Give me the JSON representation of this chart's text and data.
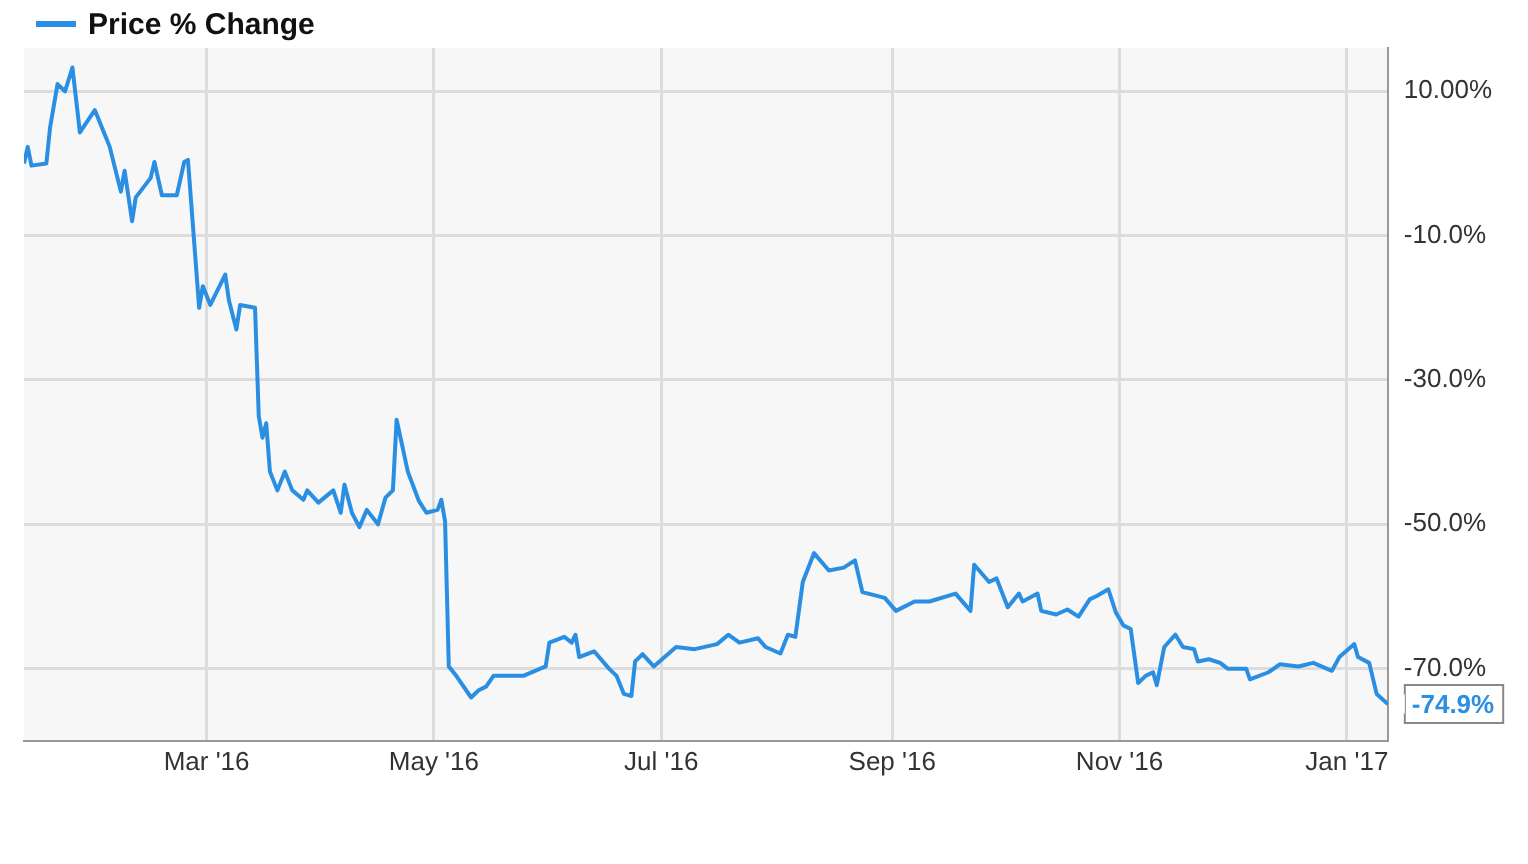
{
  "chart_data": {
    "type": "line",
    "x": [
      "2016-01-12",
      "2016-01-13",
      "2016-01-14",
      "2016-01-18",
      "2016-01-19",
      "2016-01-21",
      "2016-01-23",
      "2016-01-25",
      "2016-01-27",
      "2016-01-31",
      "2016-02-03",
      "2016-02-04",
      "2016-02-07",
      "2016-02-08",
      "2016-02-10",
      "2016-02-11",
      "2016-02-15",
      "2016-02-16",
      "2016-02-18",
      "2016-02-22",
      "2016-02-24",
      "2016-02-25",
      "2016-02-28",
      "2016-02-29",
      "2016-03-02",
      "2016-03-06",
      "2016-03-07",
      "2016-03-09",
      "2016-03-10",
      "2016-03-14",
      "2016-03-15",
      "2016-03-16",
      "2016-03-17",
      "2016-03-18",
      "2016-03-20",
      "2016-03-22",
      "2016-03-24",
      "2016-03-27",
      "2016-03-28",
      "2016-03-31",
      "2016-04-04",
      "2016-04-06",
      "2016-04-07",
      "2016-04-09",
      "2016-04-11",
      "2016-04-13",
      "2016-04-16",
      "2016-04-18",
      "2016-04-20",
      "2016-04-21",
      "2016-04-24",
      "2016-04-27",
      "2016-04-29",
      "2016-05-02",
      "2016-05-03",
      "2016-05-04",
      "2016-05-05",
      "2016-05-07",
      "2016-05-11",
      "2016-05-13",
      "2016-05-15",
      "2016-05-17",
      "2016-05-25",
      "2016-05-31",
      "2016-06-01",
      "2016-06-05",
      "2016-06-07",
      "2016-06-08",
      "2016-06-09",
      "2016-06-13",
      "2016-06-17",
      "2016-06-19",
      "2016-06-21",
      "2016-06-23",
      "2016-06-24",
      "2016-06-26",
      "2016-06-29",
      "2016-07-05",
      "2016-07-10",
      "2016-07-16",
      "2016-07-19",
      "2016-07-22",
      "2016-07-27",
      "2016-07-29",
      "2016-08-02",
      "2016-08-04",
      "2016-08-06",
      "2016-08-08",
      "2016-08-11",
      "2016-08-15",
      "2016-08-19",
      "2016-08-22",
      "2016-08-24",
      "2016-08-30",
      "2016-09-02",
      "2016-09-07",
      "2016-09-11",
      "2016-09-18",
      "2016-09-22",
      "2016-09-23",
      "2016-09-27",
      "2016-09-29",
      "2016-10-02",
      "2016-10-05",
      "2016-10-06",
      "2016-10-10",
      "2016-10-11",
      "2016-10-15",
      "2016-10-18",
      "2016-10-21",
      "2016-10-24",
      "2016-10-26",
      "2016-10-29",
      "2016-10-31",
      "2016-11-02",
      "2016-11-04",
      "2016-11-06",
      "2016-11-08",
      "2016-11-10",
      "2016-11-11",
      "2016-11-13",
      "2016-11-16",
      "2016-11-18",
      "2016-11-21",
      "2016-11-22",
      "2016-11-25",
      "2016-11-28",
      "2016-11-30",
      "2016-12-05",
      "2016-12-06",
      "2016-12-11",
      "2016-12-14",
      "2016-12-19",
      "2016-12-23",
      "2016-12-28",
      "2016-12-30",
      "2017-01-03",
      "2017-01-04",
      "2017-01-07",
      "2017-01-09",
      "2017-01-12"
    ],
    "series": [
      {
        "name": "Price % Change",
        "color": "#2a8fe3",
        "values": [
          0,
          2.3,
          -0.3,
          0,
          5,
          11,
          10,
          13.3,
          4.3,
          7.4,
          3.6,
          2.3,
          -3.9,
          -1,
          -8,
          -4.7,
          -2,
          0.2,
          -4.4,
          -4.4,
          0.2,
          0.5,
          -20,
          -17,
          -19.6,
          -15.4,
          -19,
          -23,
          -19.6,
          -20,
          -35,
          -38,
          -36,
          -42.7,
          -45.3,
          -42.7,
          -45.3,
          -46.6,
          -45.3,
          -47,
          -45.3,
          -48.4,
          -44.5,
          -48.4,
          -50.4,
          -48,
          -50,
          -46.3,
          -45.3,
          -35.5,
          -42.7,
          -46.8,
          -48.4,
          -48,
          -46.6,
          -49.6,
          -69.7,
          -71,
          -74,
          -73,
          -72.5,
          -71,
          -71,
          -69.7,
          -66.4,
          -65.6,
          -66.4,
          -65.3,
          -68.4,
          -67.6,
          -70,
          -71,
          -73.5,
          -73.8,
          -69,
          -68,
          -69.7,
          -67,
          -67.3,
          -66.6,
          -65.3,
          -66.4,
          -65.8,
          -67,
          -67.9,
          -65.3,
          -65.6,
          -58,
          -54,
          -56.4,
          -56,
          -55,
          -59.4,
          -60.2,
          -62,
          -60.7,
          -60.7,
          -59.6,
          -62,
          -55.6,
          -58,
          -57.5,
          -61.5,
          -59.6,
          -60.7,
          -59.6,
          -62,
          -62.5,
          -61.8,
          -62.8,
          -60.4,
          -59.9,
          -59,
          -62.2,
          -64,
          -64.5,
          -72,
          -71,
          -70.5,
          -72.3,
          -67,
          -65.3,
          -67,
          -67.3,
          -69,
          -68.7,
          -69.2,
          -70,
          -70,
          -71.5,
          -70.5,
          -69.4,
          -69.7,
          -69.2,
          -70.3,
          -68.4,
          -66.6,
          -68.4,
          -69.2,
          -73.5,
          -74.9
        ]
      }
    ],
    "xlim": [
      "2016-01-12",
      "2017-01-12"
    ],
    "xticks": [
      {
        "value": "2016-03-01",
        "label": "Mar '16"
      },
      {
        "value": "2016-05-01",
        "label": "May '16"
      },
      {
        "value": "2016-07-01",
        "label": "Jul '16"
      },
      {
        "value": "2016-09-01",
        "label": "Sep '16"
      },
      {
        "value": "2016-11-01",
        "label": "Nov '16"
      },
      {
        "value": "2017-01-01",
        "label": "Jan '17"
      }
    ],
    "ylim": [
      -80,
      16
    ],
    "yticks": [
      {
        "value": 10,
        "label": "10.00%"
      },
      {
        "value": -10,
        "label": "-10.0%"
      },
      {
        "value": -30,
        "label": "-30.0%"
      },
      {
        "value": -50,
        "label": "-50.0%"
      },
      {
        "value": -70,
        "label": "-70.0%"
      }
    ],
    "grid": true,
    "legend": "top left",
    "annotations": [
      {
        "text": "-74.9%",
        "x": "2017-01-12",
        "y": -74.9
      }
    ]
  }
}
